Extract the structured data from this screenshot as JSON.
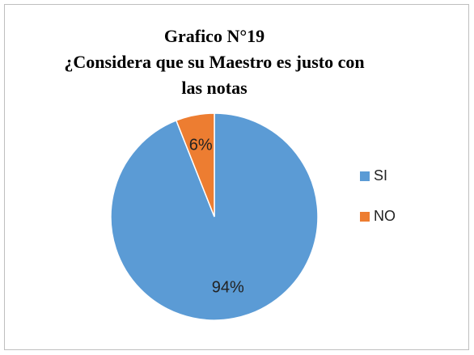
{
  "chart_data": {
    "type": "pie",
    "title": [
      "Grafico N°19",
      "¿Considera que su Maestro es justo con",
      "las notas"
    ],
    "categories": [
      "SI",
      "NO"
    ],
    "values": [
      94,
      6
    ],
    "value_labels": [
      "94%",
      "6%"
    ],
    "colors": [
      "#5b9bd5",
      "#ed7d31"
    ],
    "legend": "right"
  }
}
